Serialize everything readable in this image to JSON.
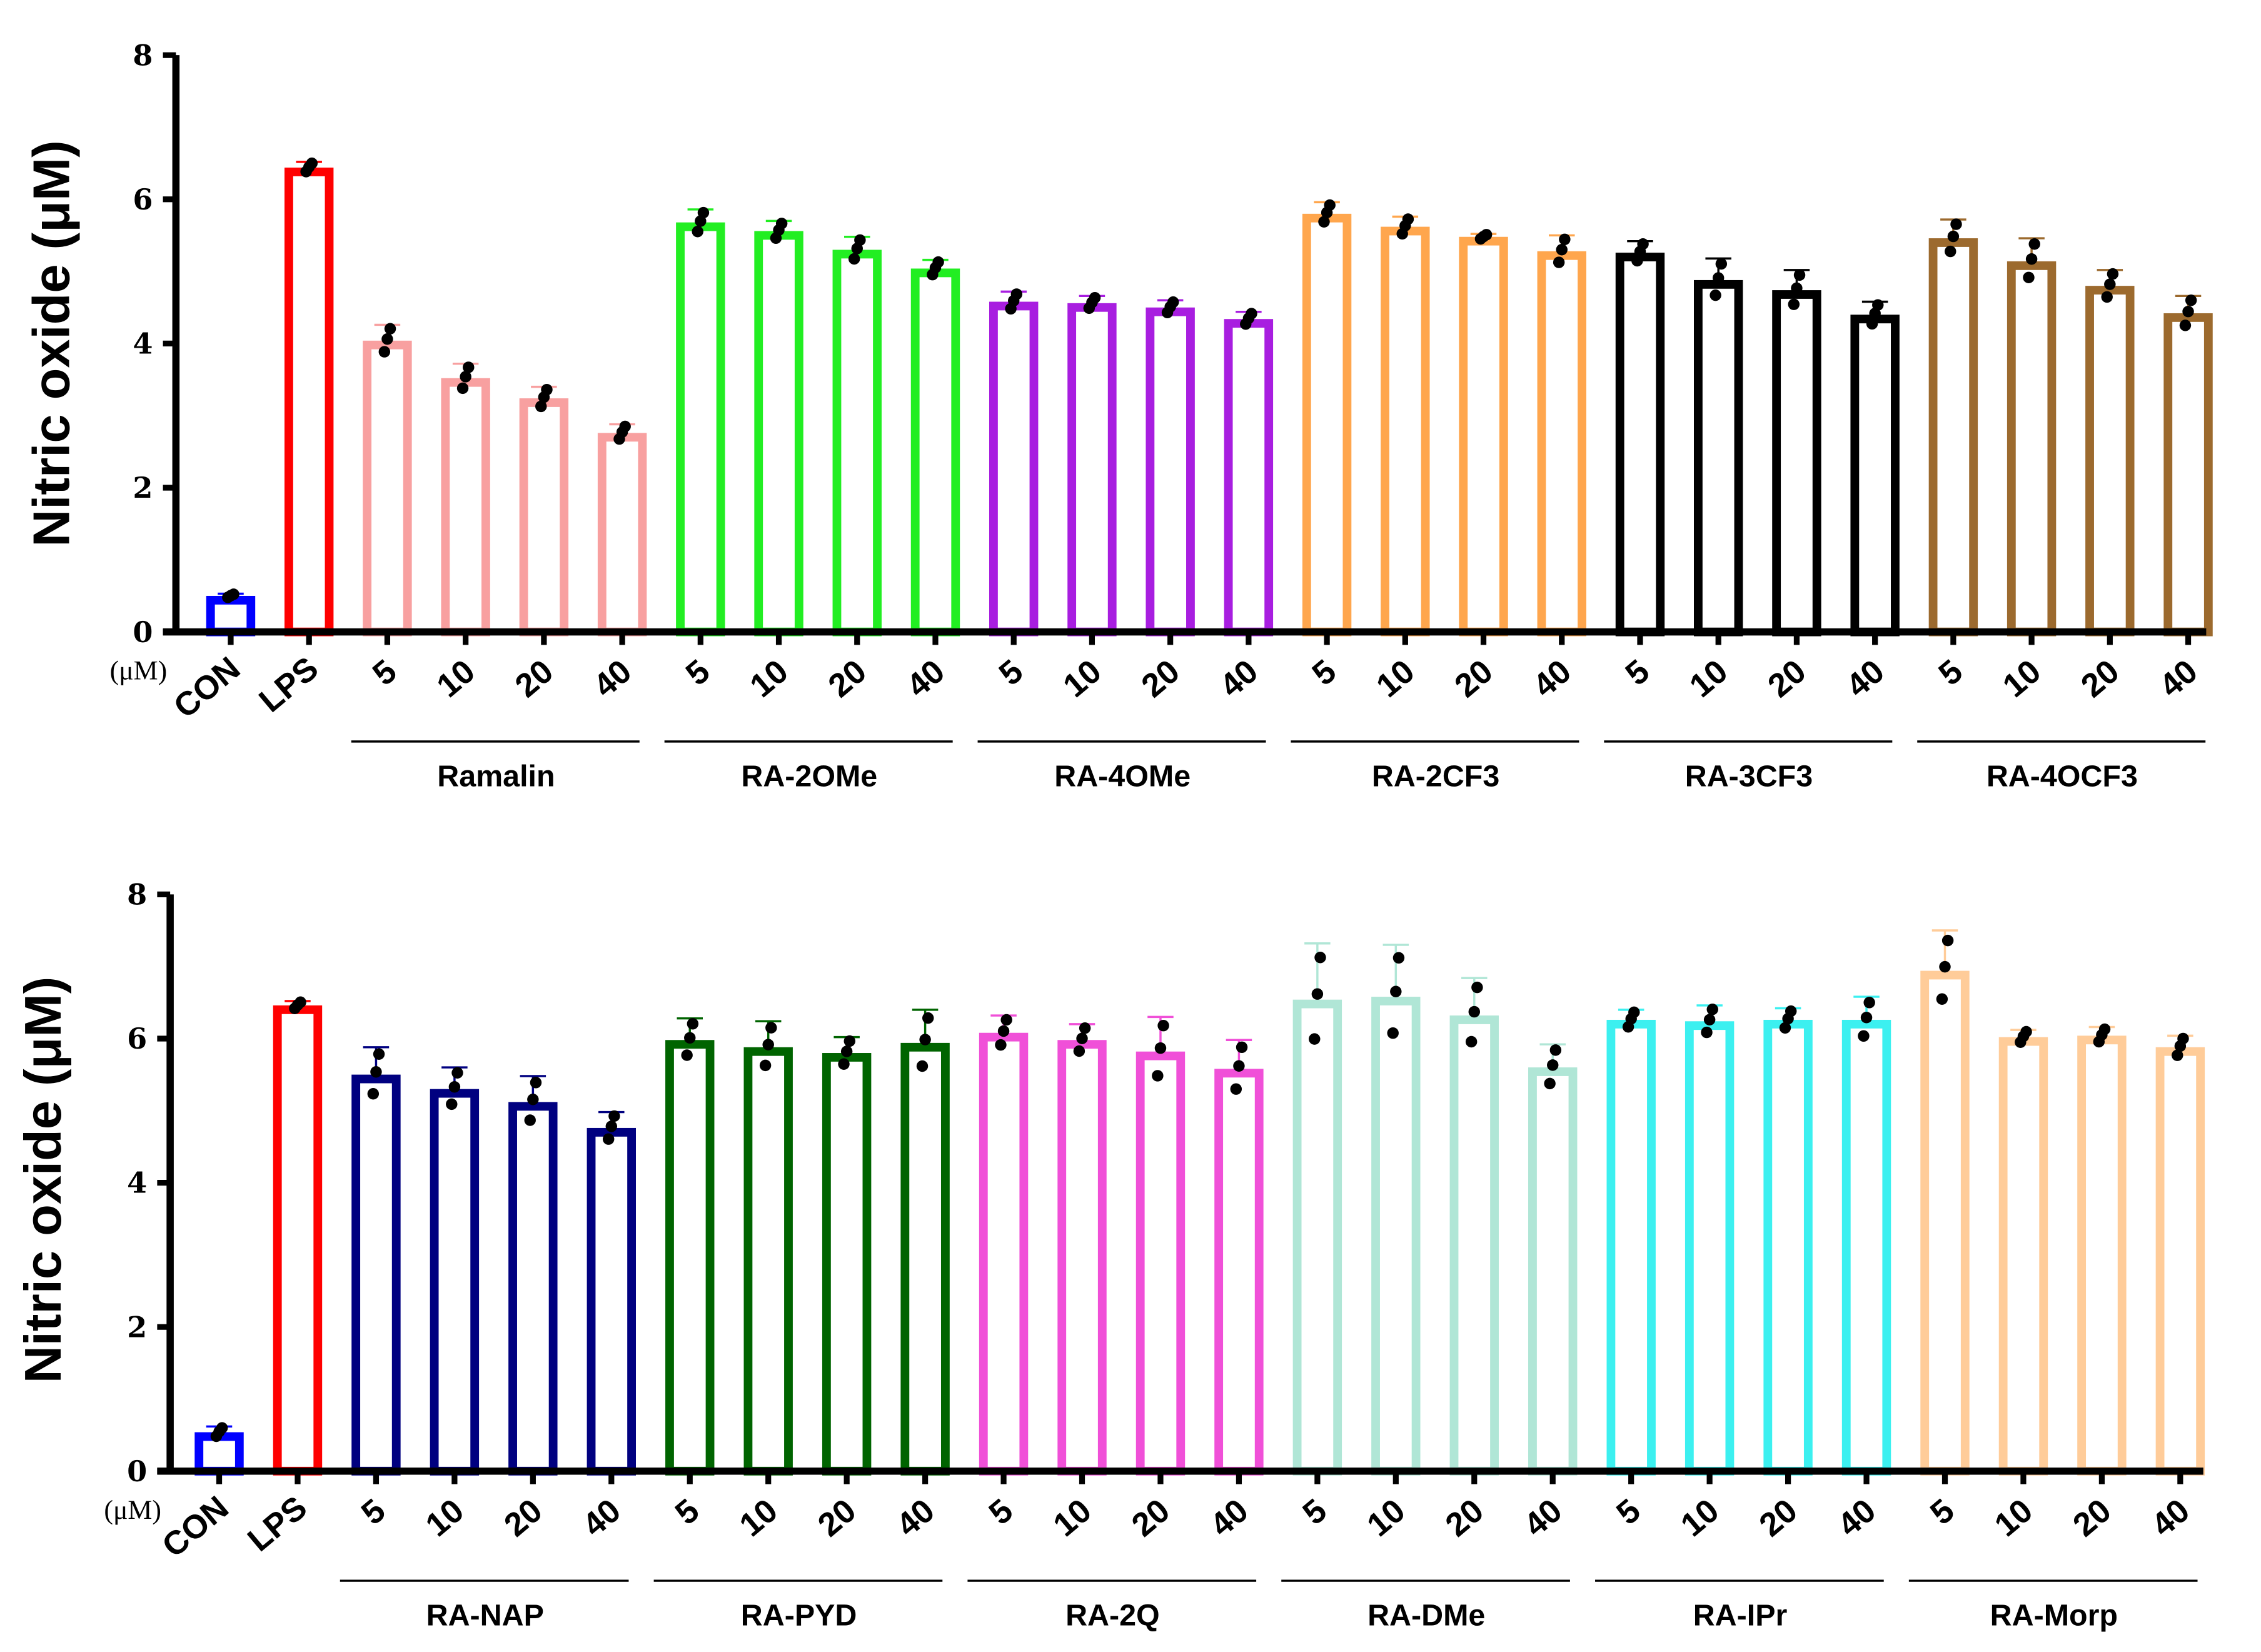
{
  "chart_data": [
    {
      "type": "bar",
      "ylabel": "Nitric oxide (μM)",
      "unit_label": "(μM)",
      "ylim": [
        0,
        8
      ],
      "yticks": [
        "0",
        "2",
        "4",
        "6",
        "8"
      ],
      "controls": [
        {
          "label": "CON",
          "value": 0.5,
          "sd": 0.03,
          "color": "#0000ff"
        },
        {
          "label": "LPS",
          "value": 6.44,
          "sd": 0.08,
          "color": "#ff0000"
        }
      ],
      "doses": [
        "5",
        "10",
        "20",
        "40"
      ],
      "groups": [
        {
          "name": "Ramalin",
          "color": "#f8a0a0",
          "values": [
            4.04,
            3.52,
            3.24,
            2.76
          ],
          "sd": [
            0.22,
            0.2,
            0.16,
            0.12
          ]
        },
        {
          "name": "RA-2OMe",
          "color": "#22ee22",
          "values": [
            5.68,
            5.56,
            5.3,
            5.04
          ],
          "sd": [
            0.18,
            0.14,
            0.18,
            0.12
          ]
        },
        {
          "name": "RA-4OMe",
          "color": "#a81ee0",
          "values": [
            4.58,
            4.56,
            4.5,
            4.34
          ],
          "sd": [
            0.14,
            0.1,
            0.1,
            0.1
          ]
        },
        {
          "name": "RA-2CF3",
          "color": "#ffa64d",
          "values": [
            5.8,
            5.62,
            5.48,
            5.28
          ],
          "sd": [
            0.16,
            0.14,
            0.04,
            0.22
          ]
        },
        {
          "name": "RA-3CF3",
          "color": "#000000",
          "values": [
            5.26,
            4.88,
            4.74,
            4.4
          ],
          "sd": [
            0.16,
            0.3,
            0.28,
            0.18
          ]
        },
        {
          "name": "RA-4OCF3",
          "color": "#9c6a2e",
          "values": [
            5.46,
            5.14,
            4.8,
            4.42
          ],
          "sd": [
            0.26,
            0.32,
            0.22,
            0.24
          ]
        }
      ]
    },
    {
      "type": "bar",
      "ylabel": "Nitric oxide (μM)",
      "unit_label": "(μM)",
      "ylim": [
        0,
        8
      ],
      "yticks": [
        "0",
        "2",
        "4",
        "6",
        "8"
      ],
      "controls": [
        {
          "label": "CON",
          "value": 0.54,
          "sd": 0.08,
          "color": "#0000ff"
        },
        {
          "label": "LPS",
          "value": 6.46,
          "sd": 0.06,
          "color": "#ff0000"
        }
      ],
      "doses": [
        "5",
        "10",
        "20",
        "40"
      ],
      "groups": [
        {
          "name": "RA-NAP",
          "color": "#000080",
          "values": [
            5.5,
            5.3,
            5.12,
            4.76
          ],
          "sd": [
            0.38,
            0.3,
            0.36,
            0.22
          ]
        },
        {
          "name": "RA-PYD",
          "color": "#006400",
          "values": [
            5.98,
            5.88,
            5.8,
            5.94
          ],
          "sd": [
            0.3,
            0.36,
            0.22,
            0.46
          ]
        },
        {
          "name": "RA-2Q",
          "color": "#f050d8",
          "values": [
            6.08,
            5.98,
            5.82,
            5.58
          ],
          "sd": [
            0.24,
            0.22,
            0.48,
            0.4
          ]
        },
        {
          "name": "RA-DMe",
          "color": "#b0e6d6",
          "values": [
            6.54,
            6.58,
            6.32,
            5.6
          ],
          "sd": [
            0.78,
            0.72,
            0.52,
            0.32
          ]
        },
        {
          "name": "RA-IPr",
          "color": "#3cf0f0",
          "values": [
            6.26,
            6.24,
            6.26,
            6.26
          ],
          "sd": [
            0.14,
            0.22,
            0.16,
            0.32
          ]
        },
        {
          "name": "RA-Morp",
          "color": "#ffcc99",
          "values": [
            6.94,
            6.02,
            6.04,
            5.88
          ],
          "sd": [
            0.56,
            0.1,
            0.12,
            0.16
          ]
        }
      ]
    }
  ]
}
